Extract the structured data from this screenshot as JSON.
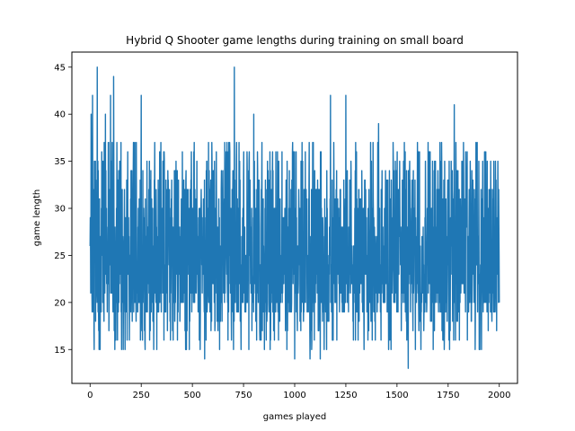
{
  "chart_data": {
    "type": "line",
    "title": "Hybrid Q Shooter game lengths during training on small board",
    "xlabel": "games played",
    "ylabel": "game length",
    "xlim": [
      -89,
      2089
    ],
    "ylim": [
      11.4,
      46.6
    ],
    "xticks": [
      0,
      250,
      500,
      750,
      1000,
      1250,
      1500,
      1750,
      2000
    ],
    "yticks": [
      15,
      20,
      25,
      30,
      35,
      40,
      45
    ],
    "grid": false,
    "color": "#1f77b4",
    "n_points": 2001,
    "y_min": 13,
    "y_max": 45,
    "samples": [
      {
        "x": 0,
        "y": 26
      },
      {
        "x": 5,
        "y": 40
      },
      {
        "x": 12,
        "y": 42
      },
      {
        "x": 20,
        "y": 15
      },
      {
        "x": 35,
        "y": 45
      },
      {
        "x": 75,
        "y": 40
      },
      {
        "x": 100,
        "y": 42
      },
      {
        "x": 115,
        "y": 44
      },
      {
        "x": 250,
        "y": 42
      },
      {
        "x": 560,
        "y": 14
      },
      {
        "x": 705,
        "y": 45
      },
      {
        "x": 800,
        "y": 40
      },
      {
        "x": 1000,
        "y": 14
      },
      {
        "x": 1075,
        "y": 14
      },
      {
        "x": 1125,
        "y": 14
      },
      {
        "x": 1175,
        "y": 42
      },
      {
        "x": 1250,
        "y": 42
      },
      {
        "x": 1410,
        "y": 39
      },
      {
        "x": 1555,
        "y": 13
      },
      {
        "x": 1780,
        "y": 41
      },
      {
        "x": 1900,
        "y": 35
      },
      {
        "x": 1950,
        "y": 32
      },
      {
        "x": 2000,
        "y": 20
      }
    ]
  }
}
